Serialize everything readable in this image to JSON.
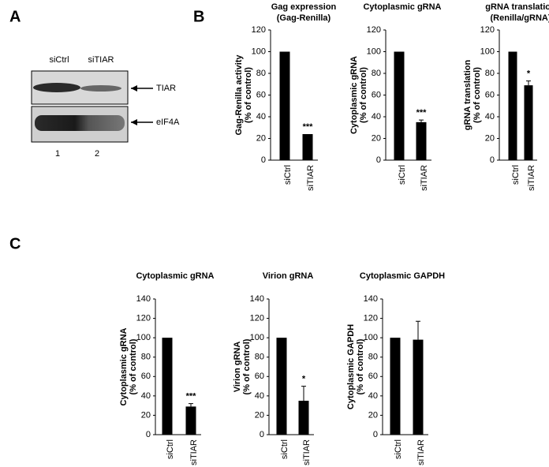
{
  "panel_labels": [
    "A",
    "B",
    "C"
  ],
  "blot": {
    "lanes": [
      "siCtrl",
      "siTIAR"
    ],
    "bands": [
      "TIAR",
      "eIF4A"
    ],
    "lane_numbers": [
      "1",
      "2"
    ]
  },
  "chart_data": [
    {
      "type": "bar",
      "title": [
        "Gag expression",
        "(Gag-Renilla)"
      ],
      "ylabel": [
        "Gag-Renilla activity",
        "(% of control)"
      ],
      "categories": [
        "siCtrl",
        "siTIAR"
      ],
      "values": [
        100,
        24
      ],
      "annotations": [
        null,
        "***"
      ],
      "color": "#000000",
      "ylim": [
        0,
        120
      ],
      "yticks": [
        0,
        20,
        40,
        60,
        80,
        100,
        120
      ]
    },
    {
      "type": "bar",
      "title": [
        "Cytoplasmic gRNA"
      ],
      "ylabel": [
        "Cytoplasmic gRNA",
        "(% of control)"
      ],
      "categories": [
        "siCtrl",
        "siTIAR"
      ],
      "values": [
        100,
        35
      ],
      "errors": [
        null,
        2
      ],
      "annotations": [
        null,
        "***"
      ],
      "color": "#000000",
      "ylim": [
        0,
        120
      ],
      "yticks": [
        0,
        20,
        40,
        60,
        80,
        100,
        120
      ]
    },
    {
      "type": "bar",
      "title": [
        "gRNA translation",
        "(Renilla/gRNA)"
      ],
      "ylabel": [
        "gRNA translation",
        "(% of control)"
      ],
      "categories": [
        "siCtrl",
        "siTIAR"
      ],
      "values": [
        100,
        69
      ],
      "errors": [
        null,
        4
      ],
      "annotations": [
        null,
        "*"
      ],
      "color": "#000000",
      "ylim": [
        0,
        120
      ],
      "yticks": [
        0,
        20,
        40,
        60,
        80,
        100,
        120
      ]
    },
    {
      "type": "bar",
      "title": [
        "Cytoplasmic gRNA"
      ],
      "ylabel": [
        "Cytoplasmic gRNA",
        "(% of control)"
      ],
      "categories": [
        "siCtrl",
        "siTIAR"
      ],
      "values": [
        100,
        29
      ],
      "errors": [
        null,
        3
      ],
      "annotations": [
        null,
        "***"
      ],
      "color": "#000000",
      "ylim": [
        0,
        140
      ],
      "yticks": [
        0,
        20,
        40,
        60,
        80,
        100,
        120,
        140
      ]
    },
    {
      "type": "bar",
      "title": [
        "Virion gRNA"
      ],
      "ylabel": [
        "Virion gRNA",
        "(% of control)"
      ],
      "categories": [
        "siCtrl",
        "siTIAR"
      ],
      "values": [
        100,
        35
      ],
      "errors": [
        null,
        15
      ],
      "annotations": [
        null,
        "*"
      ],
      "color": "#000000",
      "ylim": [
        0,
        140
      ],
      "yticks": [
        0,
        20,
        40,
        60,
        80,
        100,
        120,
        140
      ]
    },
    {
      "type": "bar",
      "title": [
        "Cytoplasmic GAPDH"
      ],
      "ylabel": [
        "Cytoplasmic GAPDH",
        "(% of control)"
      ],
      "categories": [
        "siCtrl",
        "siTIAR"
      ],
      "values": [
        100,
        98
      ],
      "errors": [
        null,
        19
      ],
      "color": "#000000",
      "ylim": [
        0,
        140
      ],
      "yticks": [
        0,
        20,
        40,
        60,
        80,
        100,
        120,
        140
      ]
    }
  ]
}
